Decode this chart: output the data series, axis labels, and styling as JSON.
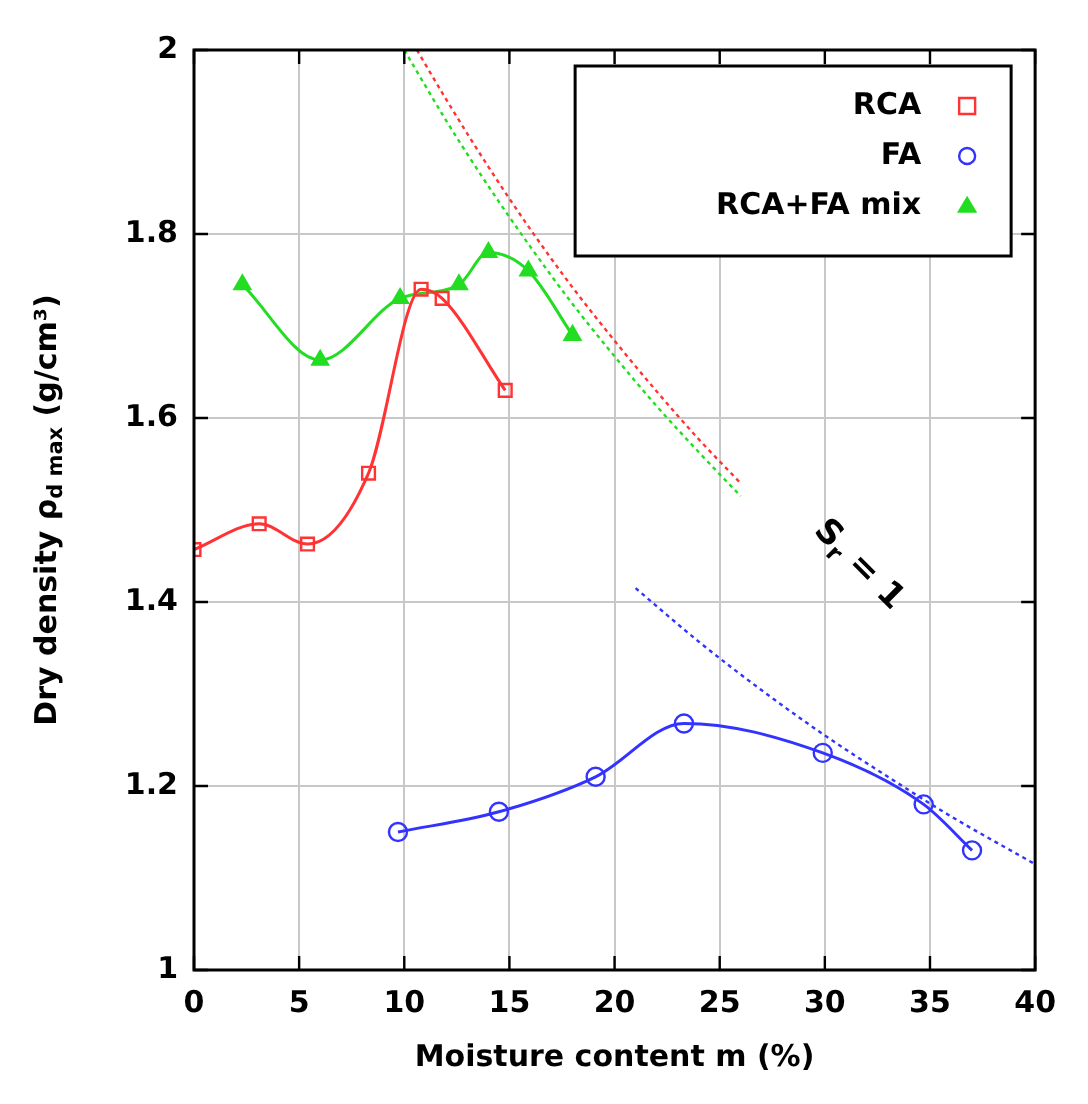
{
  "chart_data": {
    "type": "line",
    "xlabel": "Moisture content m (%)",
    "ylabel": "Dry density ρ$_{d max}$ (g/cm³)",
    "xlim": [
      0,
      40
    ],
    "xticks": [
      0,
      5,
      10,
      15,
      20,
      25,
      30,
      35,
      40
    ],
    "ylim": [
      1,
      2
    ],
    "yticks": [
      1,
      1.2,
      1.4,
      1.6,
      1.8,
      2
    ],
    "grid": true,
    "legend": "top right",
    "series": [
      {
        "name": "RCA",
        "color": "#ff3333",
        "marker": "square",
        "x": [
          0,
          3.1,
          5.4,
          8.3,
          10.8,
          11.8,
          14.8
        ],
        "values": [
          1.457,
          1.485,
          1.463,
          1.54,
          1.74,
          1.73,
          1.63
        ]
      },
      {
        "name": "FA",
        "color": "#3333ff",
        "marker": "circle",
        "x": [
          9.7,
          14.5,
          19.1,
          23.3,
          29.9,
          34.7,
          37
        ],
        "values": [
          1.15,
          1.172,
          1.21,
          1.268,
          1.236,
          1.18,
          1.13
        ]
      },
      {
        "name": "RCA+FA mix",
        "color": "#22dd22",
        "marker": "triangle",
        "x": [
          2.3,
          6,
          9.8,
          12.6,
          14,
          15.9,
          18
        ],
        "values": [
          1.745,
          1.663,
          1.73,
          1.745,
          1.78,
          1.76,
          1.69
        ]
      },
      {
        "color": "#ff3333",
        "marker": "none",
        "line_style": "dotted",
        "x": [
          10.6,
          12,
          14,
          16,
          18,
          20,
          22,
          24,
          26
        ],
        "values": [
          2,
          1.946,
          1.873,
          1.805,
          1.742,
          1.684,
          1.629,
          1.577,
          1.529
        ]
      },
      {
        "color": "#22dd22",
        "marker": "none",
        "line_style": "dotted",
        "x": [
          10,
          12,
          14,
          16,
          18,
          20,
          22,
          24,
          26
        ],
        "values": [
          2,
          1.923,
          1.852,
          1.786,
          1.724,
          1.667,
          1.613,
          1.563,
          1.515
        ]
      },
      {
        "color": "#3333ff",
        "marker": "none",
        "line_style": "dotted",
        "x": [
          21,
          24,
          27,
          30,
          33,
          36,
          40
        ],
        "values": [
          1.415,
          1.357,
          1.304,
          1.255,
          1.21,
          1.167,
          1.115
        ]
      }
    ],
    "annotations": [
      "S$_{r}$ = 1"
    ]
  }
}
